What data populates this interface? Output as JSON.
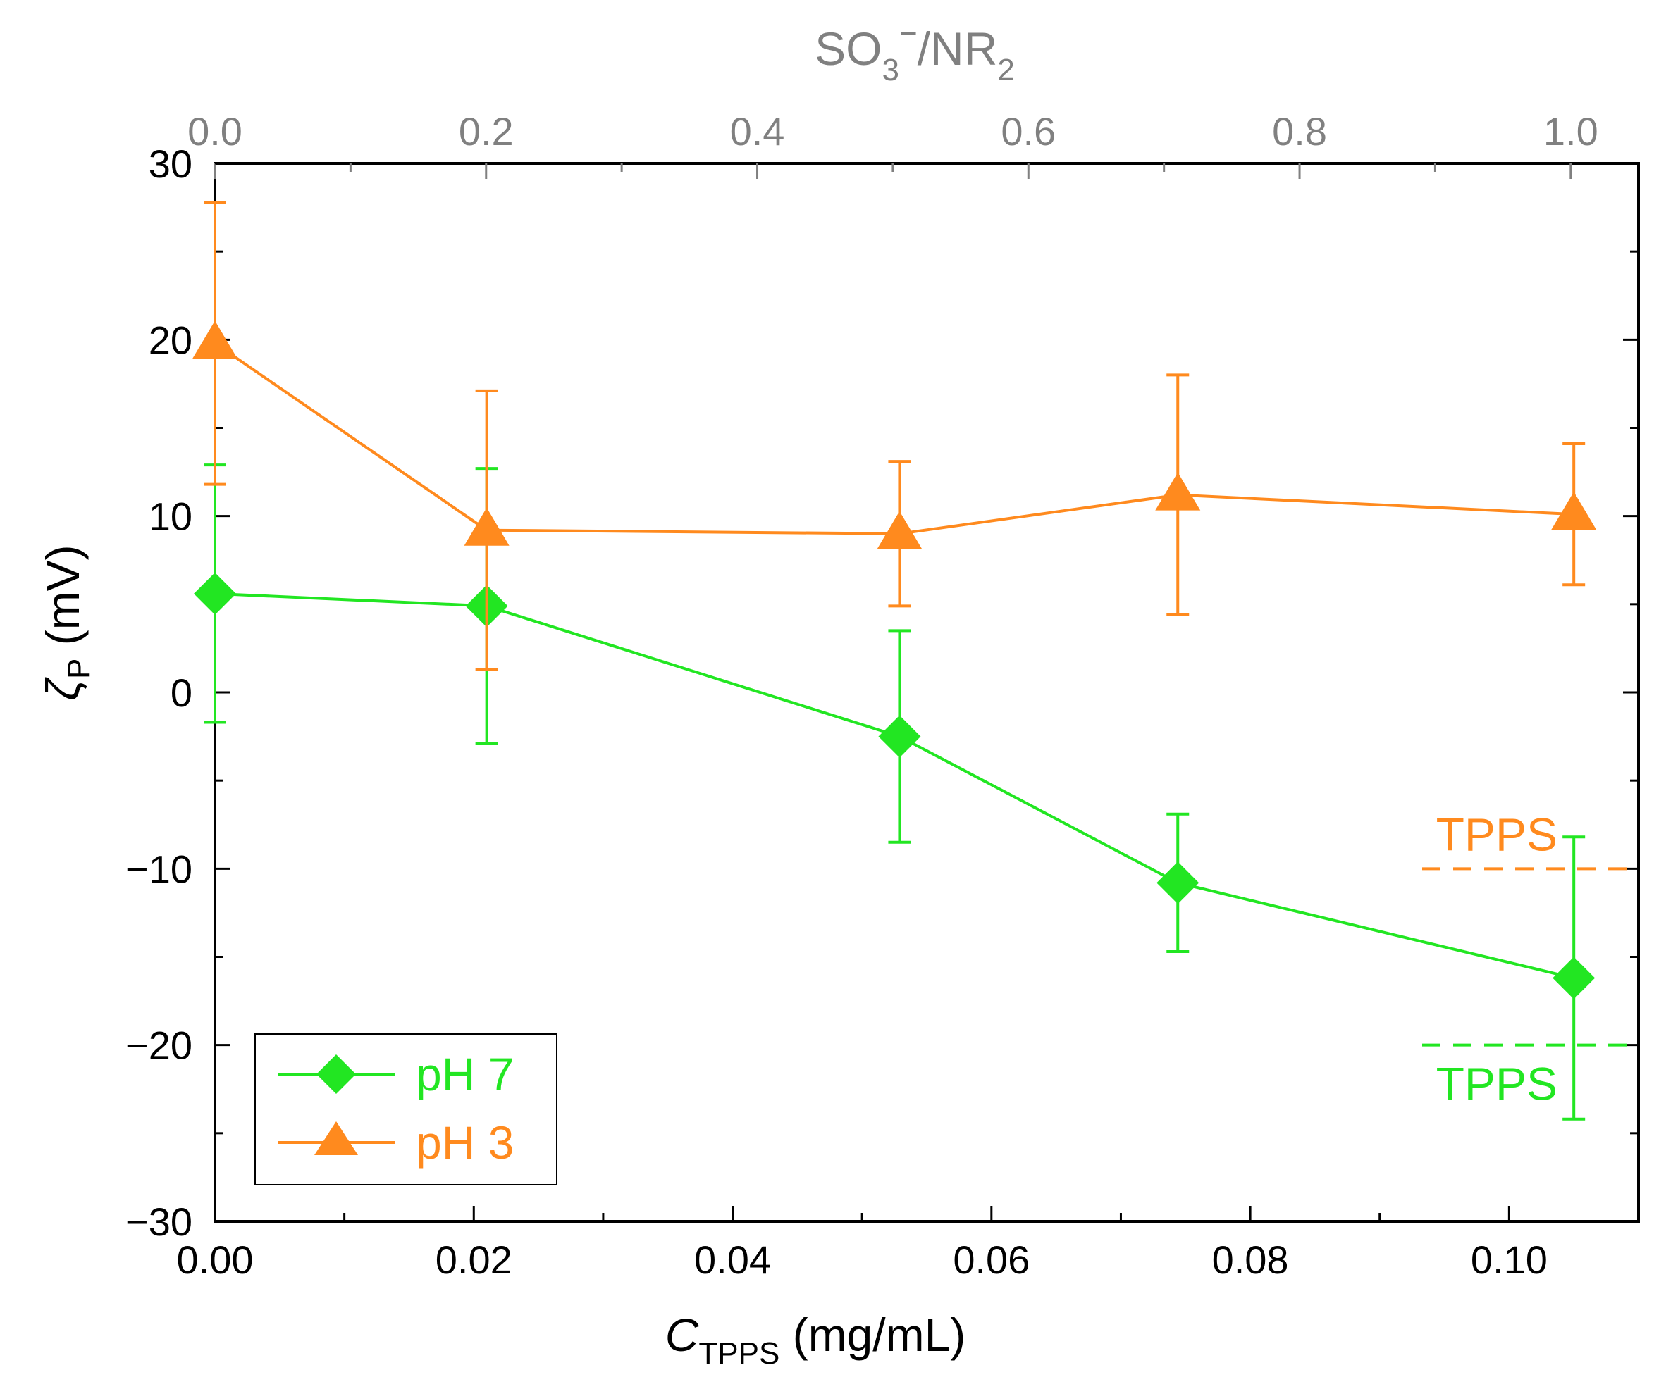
{
  "chart_data": {
    "type": "line",
    "x_axis": {
      "label_main": "C",
      "label_sub": "TPPS",
      "label_unit": " (mg/mL)",
      "range": [
        0,
        0.11
      ],
      "ticks": [
        0.0,
        0.02,
        0.04,
        0.06,
        0.08,
        0.1
      ],
      "tick_labels": [
        "0.00",
        "0.02",
        "0.04",
        "0.06",
        "0.08",
        "0.10"
      ],
      "minor_step": 0.01
    },
    "x2_axis": {
      "label_a": "SO",
      "label_a_sub": "3",
      "label_a_sup": "−",
      "label_b": "/NR",
      "label_b_sub": "2",
      "range": [
        0,
        1.05
      ],
      "ticks": [
        0.0,
        0.2,
        0.4,
        0.6,
        0.8,
        1.0
      ],
      "tick_labels": [
        "0.0",
        "0.2",
        "0.4",
        "0.6",
        "0.8",
        "1.0"
      ],
      "minor_step": 0.1
    },
    "y_axis": {
      "label_main": "ζ",
      "label_sub": "P",
      "label_unit": " (mV)",
      "range": [
        -30,
        30
      ],
      "ticks": [
        -30,
        -20,
        -10,
        0,
        10,
        20,
        30
      ],
      "tick_labels": [
        "−30",
        "−20",
        "−10",
        "0",
        "10",
        "20",
        "30"
      ],
      "minor_step": 5
    },
    "series": [
      {
        "name": "pH 7",
        "color": "#22e622",
        "marker": "diamond",
        "x": [
          0.0,
          0.021,
          0.0529,
          0.0744,
          0.105
        ],
        "y": [
          5.6,
          4.9,
          -2.5,
          -10.8,
          -16.2
        ],
        "err": [
          7.3,
          7.8,
          6.0,
          3.9,
          8.0
        ]
      },
      {
        "name": "pH 3",
        "color": "#ff8a1e",
        "marker": "triangle",
        "x": [
          0.0,
          0.021,
          0.0529,
          0.0744,
          0.105
        ],
        "y": [
          19.8,
          9.2,
          9.0,
          11.2,
          10.1
        ],
        "err": [
          8.0,
          7.9,
          4.1,
          6.8,
          4.0
        ]
      }
    ],
    "reference_lines": [
      {
        "label": "TPPS",
        "y": -10,
        "color": "#ff8a1e",
        "label_position": "above"
      },
      {
        "label": "TPPS",
        "y": -20,
        "color": "#22e622",
        "label_position": "below"
      }
    ],
    "legend": {
      "position": "bottom-left"
    }
  }
}
